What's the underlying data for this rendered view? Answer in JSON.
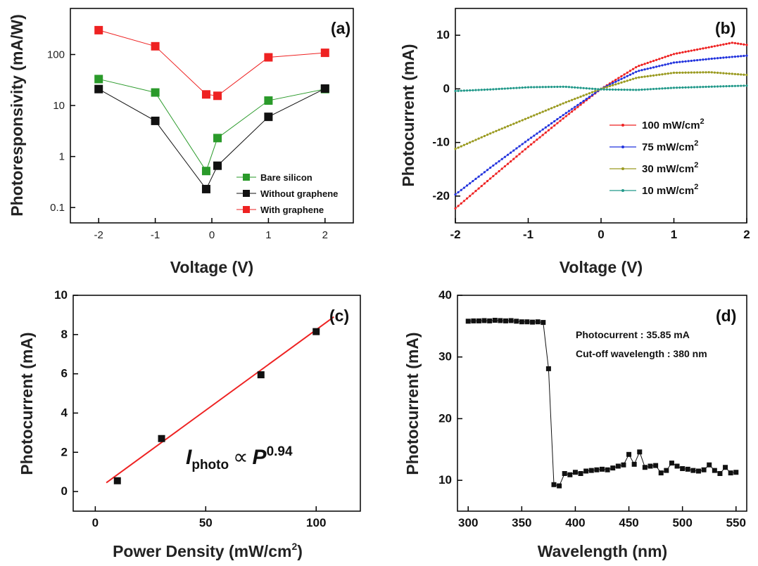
{
  "chart_data": [
    {
      "panel": "(a)",
      "type": "line",
      "xlabel": "Voltage (V)",
      "ylabel": "Photoresponsivity (mA/W)",
      "yscale": "log",
      "xlim": [
        -2.5,
        2.5
      ],
      "ylim": [
        0.05,
        800
      ],
      "xticks": [
        -2,
        -1,
        0,
        1,
        2
      ],
      "xtick_labels": [
        "-2",
        "-1",
        "0",
        "1",
        "2"
      ],
      "yticks": [
        0.1,
        1,
        10,
        100
      ],
      "ytick_labels": [
        "0.1",
        "1",
        "10",
        "100"
      ],
      "legend_position": "bottom-right",
      "series": [
        {
          "name": "Bare silicon",
          "color": "#2a9a2a",
          "marker": "square",
          "x": [
            -2,
            -1,
            -0.1,
            0.1,
            1,
            2
          ],
          "y": [
            33,
            18,
            0.52,
            2.3,
            12.5,
            21
          ]
        },
        {
          "name": "Without graphene",
          "color": "#111111",
          "marker": "square",
          "x": [
            -2,
            -1,
            -0.1,
            0.1,
            1,
            2
          ],
          "y": [
            21,
            5,
            0.23,
            0.66,
            6,
            21.5
          ]
        },
        {
          "name": "With graphene",
          "color": "#ee2222",
          "marker": "square",
          "x": [
            -2,
            -1,
            -0.1,
            0.1,
            1,
            2
          ],
          "y": [
            300,
            145,
            16.5,
            15.5,
            88,
            108
          ]
        }
      ]
    },
    {
      "panel": "(b)",
      "type": "line",
      "xlabel": "Voltage (V)",
      "ylabel": "Photocurrent (mA)",
      "xlim": [
        -2,
        2
      ],
      "ylim": [
        -25,
        15
      ],
      "xticks": [
        -2,
        -1,
        0,
        1,
        2
      ],
      "xtick_labels": [
        "-2",
        "-1",
        "0",
        "1",
        "2"
      ],
      "yticks": [
        -20,
        -10,
        0,
        10
      ],
      "ytick_labels": [
        "-20",
        "-10",
        "0",
        "10"
      ],
      "legend_position": "right",
      "series": [
        {
          "name": "100 mW/cm",
          "sup": "2",
          "color": "#ee2222",
          "x": [
            -2,
            -1.5,
            -1,
            -0.5,
            0,
            0.5,
            1,
            1.5,
            1.8,
            2
          ],
          "y": [
            -22.3,
            -16.5,
            -10.8,
            -5.3,
            0,
            4.2,
            6.5,
            7.8,
            8.6,
            8.2
          ]
        },
        {
          "name": "75 mW/cm",
          "sup": "2",
          "color": "#2233dd",
          "x": [
            -2,
            -1.5,
            -1,
            -0.5,
            0,
            0.5,
            1,
            1.5,
            2
          ],
          "y": [
            -19.7,
            -14.5,
            -9.5,
            -4.7,
            0,
            3.3,
            4.9,
            5.6,
            6.2
          ]
        },
        {
          "name": "30 mW/cm",
          "sup": "2",
          "color": "#9a9a20",
          "x": [
            -2,
            -1.5,
            -1,
            -0.5,
            0,
            0.5,
            1,
            1.5,
            2
          ],
          "y": [
            -11.2,
            -8.2,
            -5.4,
            -2.6,
            0,
            2.1,
            3.0,
            3.1,
            2.6
          ]
        },
        {
          "name": "10 mW/cm",
          "sup": "2",
          "color": "#22998a",
          "x": [
            -2,
            -1.5,
            -1,
            -0.5,
            0,
            0.5,
            1,
            1.5,
            2
          ],
          "y": [
            -0.4,
            -0.1,
            0.3,
            0.4,
            -0.1,
            -0.2,
            0.2,
            0.4,
            0.6
          ]
        }
      ]
    },
    {
      "panel": "(c)",
      "type": "scatter",
      "xlabel": "Power Density (mW/cm",
      "xlabel_sup": "2",
      "xlabel_end": ")",
      "ylabel": "Photocurrent (mA)",
      "xlim": [
        -10,
        120
      ],
      "ylim": [
        -1,
        10
      ],
      "xticks": [
        0,
        50,
        100
      ],
      "xtick_labels": [
        "0",
        "50",
        "100"
      ],
      "yticks": [
        0,
        2,
        4,
        6,
        8,
        10
      ],
      "ytick_labels": [
        "0",
        "2",
        "4",
        "6",
        "8",
        "10"
      ],
      "points": {
        "x": [
          10,
          30,
          75,
          100
        ],
        "y": [
          0.55,
          2.7,
          5.95,
          8.15
        ],
        "color": "#111111"
      },
      "fit": {
        "x": [
          5,
          108
        ],
        "y": [
          0.45,
          8.9
        ],
        "color": "#ee2222"
      },
      "annotation": {
        "I": "I",
        "sub": "photo",
        "prop": "∝",
        "P": "P",
        "exp": "0.94"
      }
    },
    {
      "panel": "(d)",
      "type": "line",
      "xlabel": "Wavelength (nm)",
      "ylabel": "Photocurrent (mA)",
      "xlim": [
        290,
        560
      ],
      "ylim": [
        5,
        40
      ],
      "xticks": [
        300,
        350,
        400,
        450,
        500,
        550
      ],
      "xtick_labels": [
        "300",
        "350",
        "400",
        "450",
        "500",
        "550"
      ],
      "yticks": [
        10,
        20,
        30,
        40
      ],
      "ytick_labels": [
        "10",
        "20",
        "30",
        "40"
      ],
      "color": "#111111",
      "x": [
        300,
        305,
        310,
        315,
        320,
        325,
        330,
        335,
        340,
        345,
        350,
        355,
        360,
        365,
        370,
        375,
        380,
        385,
        390,
        395,
        400,
        405,
        410,
        415,
        420,
        425,
        430,
        435,
        440,
        445,
        450,
        455,
        460,
        465,
        470,
        475,
        480,
        485,
        490,
        495,
        500,
        505,
        510,
        515,
        520,
        525,
        530,
        535,
        540,
        545,
        550
      ],
      "y": [
        35.8,
        35.85,
        35.85,
        35.9,
        35.85,
        35.95,
        35.9,
        35.85,
        35.9,
        35.8,
        35.7,
        35.7,
        35.65,
        35.7,
        35.6,
        28.1,
        9.3,
        9.1,
        11.1,
        10.9,
        11.3,
        11.1,
        11.5,
        11.6,
        11.7,
        11.8,
        11.7,
        12.0,
        12.3,
        12.5,
        14.2,
        12.6,
        14.6,
        12.1,
        12.3,
        12.4,
        11.2,
        11.6,
        12.8,
        12.3,
        11.9,
        11.8,
        11.6,
        11.5,
        11.7,
        12.5,
        11.6,
        11.1,
        12.1,
        11.2,
        11.3
      ],
      "annotation_lines": [
        "Photocurrent : 35.85 mA",
        "Cut-off wavelength : 380 nm"
      ]
    }
  ]
}
